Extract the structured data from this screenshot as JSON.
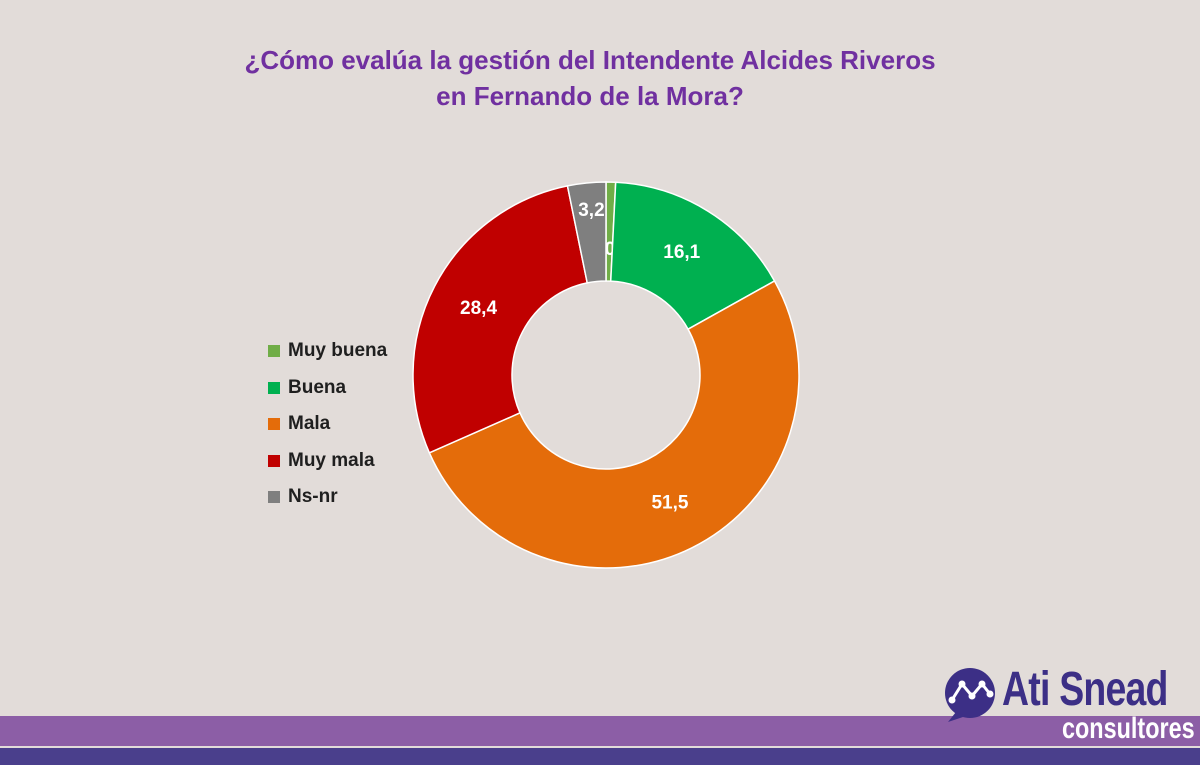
{
  "chart_data": {
    "type": "pie",
    "title_lines": [
      "¿Cómo evalúa la gestión del Intendente Alcides Riveros",
      "en Fernando de la Mora?"
    ],
    "categories": [
      "Muy buena",
      "Buena",
      "Mala",
      "Muy mala",
      "Ns-nr"
    ],
    "values": [
      0.8,
      16.1,
      51.5,
      28.4,
      3.2
    ],
    "labels": [
      "0,8",
      "16,1",
      "51,5",
      "28,4",
      "3,2"
    ],
    "colors": [
      "#70ad47",
      "#00b050",
      "#e46c0a",
      "#c00000",
      "#7f7f7f"
    ],
    "donut": true,
    "legend_position": "left"
  },
  "logo": {
    "name": "Ati Snead",
    "subtitle": "consultores",
    "color": "#3c2f86"
  }
}
